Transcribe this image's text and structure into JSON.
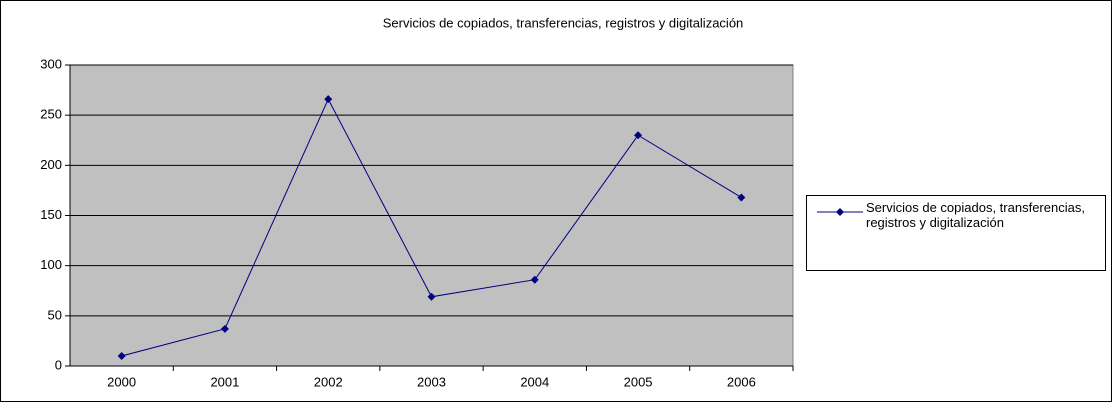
{
  "chart_data": {
    "type": "line",
    "title": "Servicios de copiados, transferencias, registros y digitalización",
    "categories": [
      "2000",
      "2001",
      "2002",
      "2003",
      "2004",
      "2005",
      "2006"
    ],
    "series": [
      {
        "name": "Servicios de copiados, transferencias, registros y digitalización",
        "color": "#000080",
        "values": [
          10,
          37,
          266,
          69,
          86,
          230,
          168
        ]
      }
    ],
    "ylim": [
      0,
      300
    ],
    "yticks": [
      0,
      50,
      100,
      150,
      200,
      250,
      300
    ],
    "grid": true,
    "legend": "right"
  }
}
